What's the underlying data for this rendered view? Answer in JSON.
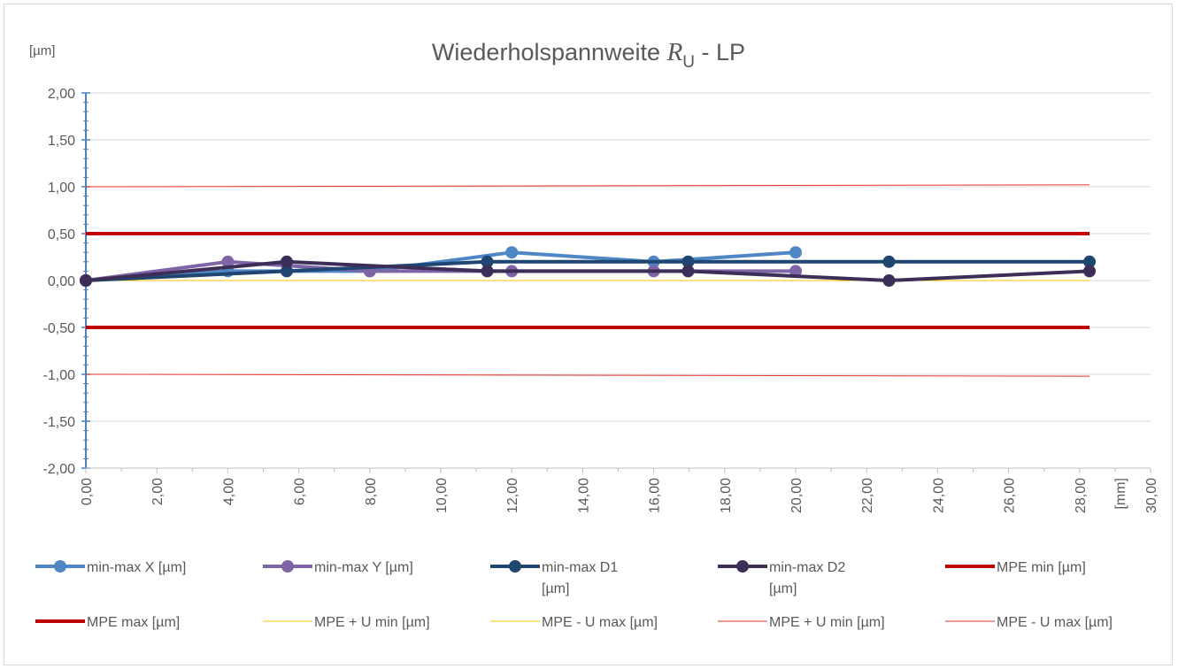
{
  "chart_data": {
    "type": "line",
    "title": {
      "text": "Wiederholspannweite ",
      "symbol": "R",
      "subscript": "U",
      "suffix": " - LP"
    },
    "y_unit": "[µm]",
    "x_unit": "[mm]",
    "xlim": [
      0,
      30
    ],
    "ylim": [
      -2,
      2
    ],
    "xticks": [
      {
        "value": 0,
        "label": "0,00"
      },
      {
        "value": 2,
        "label": "2,00"
      },
      {
        "value": 4,
        "label": "4,00"
      },
      {
        "value": 6,
        "label": "6,00"
      },
      {
        "value": 8,
        "label": "8,00"
      },
      {
        "value": 10,
        "label": "10,00"
      },
      {
        "value": 12,
        "label": "12,00"
      },
      {
        "value": 14,
        "label": "14,00"
      },
      {
        "value": 16,
        "label": "16,00"
      },
      {
        "value": 18,
        "label": "18,00"
      },
      {
        "value": 20,
        "label": "20,00"
      },
      {
        "value": 22,
        "label": "22,00"
      },
      {
        "value": 24,
        "label": "24,00"
      },
      {
        "value": 26,
        "label": "26,00"
      },
      {
        "value": 28,
        "label": "28,00"
      },
      {
        "value": 30,
        "label": "30,00"
      }
    ],
    "yticks": [
      {
        "value": 2,
        "label": "2,00"
      },
      {
        "value": 1.5,
        "label": "1,50"
      },
      {
        "value": 1,
        "label": "1,00"
      },
      {
        "value": 0.5,
        "label": "0,50"
      },
      {
        "value": 0,
        "label": "0,00"
      },
      {
        "value": -0.5,
        "label": "-0,50"
      },
      {
        "value": -1,
        "label": "-1,00"
      },
      {
        "value": -1.5,
        "label": "-1,50"
      },
      {
        "value": -2,
        "label": "-2,00"
      }
    ],
    "grid": true,
    "legend": "bottom",
    "series": [
      {
        "name": "min-max X [µm]",
        "color": "#4f86c6",
        "line_width": 4,
        "marker": true,
        "x": [
          0,
          4,
          8,
          12,
          16,
          20
        ],
        "values": [
          0,
          0.1,
          0.1,
          0.3,
          0.2,
          0.3
        ]
      },
      {
        "name": "min-max Y [µm]",
        "color": "#8064a8",
        "line_width": 4,
        "marker": true,
        "x": [
          0,
          4,
          8,
          12,
          16,
          20
        ],
        "values": [
          0,
          0.2,
          0.1,
          0.1,
          0.1,
          0.1
        ]
      },
      {
        "name": "min-max D1 [µm]",
        "color": "#1f4670",
        "line_width": 4,
        "marker": true,
        "x": [
          0,
          5.66,
          11.31,
          16.97,
          22.63,
          28.28
        ],
        "values": [
          0,
          0.1,
          0.2,
          0.2,
          0.2,
          0.2
        ]
      },
      {
        "name": "min-max D2 [µm]",
        "color": "#3d2e58",
        "line_width": 4,
        "marker": true,
        "x": [
          0,
          5.66,
          11.31,
          16.97,
          22.63,
          28.28
        ],
        "values": [
          0,
          0.2,
          0.1,
          0.1,
          0,
          0.1
        ]
      },
      {
        "name": "MPE min [µm]",
        "color": "#c00000",
        "line_width": 4,
        "marker": false,
        "x": [
          0,
          28.28
        ],
        "values": [
          -0.5,
          -0.5
        ]
      },
      {
        "name": "MPE max [µm]",
        "color": "#c00000",
        "line_width": 4,
        "marker": false,
        "x": [
          0,
          28.28
        ],
        "values": [
          0.5,
          0.5
        ]
      },
      {
        "name": "MPE + U min [µm]",
        "color": "#ffc000",
        "line_width": 1,
        "marker": false,
        "x": [
          0,
          28.28
        ],
        "values": [
          0,
          0
        ]
      },
      {
        "name": "MPE - U max [µm]",
        "color": "#ffc000",
        "line_width": 1,
        "marker": false,
        "x": [
          0,
          28.28
        ],
        "values": [
          0,
          0
        ]
      },
      {
        "name": "MPE + U min [µm]",
        "color": "#e8312a",
        "line_width": 1,
        "marker": false,
        "x": [
          0,
          28.28
        ],
        "values": [
          1,
          1.02
        ]
      },
      {
        "name": "MPE - U max [µm]",
        "color": "#e8312a",
        "line_width": 1,
        "marker": false,
        "x": [
          0,
          28.28
        ],
        "values": [
          -1,
          -1.02
        ]
      }
    ]
  }
}
